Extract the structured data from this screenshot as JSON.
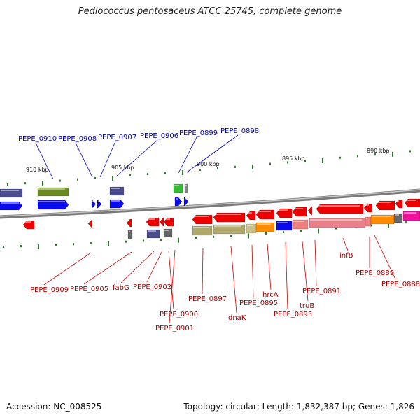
{
  "title": "Pediococcus pentosaceus ATCC 25745, complete genome",
  "accession_label": "Accession: NC_008525",
  "summary": "Topology: circular; Length: 1,832,387 bp; Genes: 1,826",
  "colors": {
    "top_label": "#0000aa",
    "bottom_label": "#aa0000",
    "backbone": "#8a8a8a",
    "tick": "#2a7a2a"
  },
  "kbp_marks": [
    "910 kbp",
    "905 kbp",
    "900 kbp",
    "895 kbp",
    "890 kbp"
  ],
  "top_labels": [
    "PEPE_0910",
    "PEPE_0908",
    "PEPE_0907",
    "PEPE_0906",
    "PEPE_0899",
    "PEPE_0898"
  ],
  "bottom_labels": [
    "PEPE_0909",
    "PEPE_0905",
    "fabG",
    "PEPE_0902",
    "PEPE_0900",
    "PEPE_0901",
    "PEPE_0897",
    "dnaK",
    "PEPE_0895",
    "hrcA",
    "PEPE_0893",
    "truB",
    "PEPE_0891",
    "infB",
    "PEPE_0889",
    "PEPE_0888"
  ]
}
